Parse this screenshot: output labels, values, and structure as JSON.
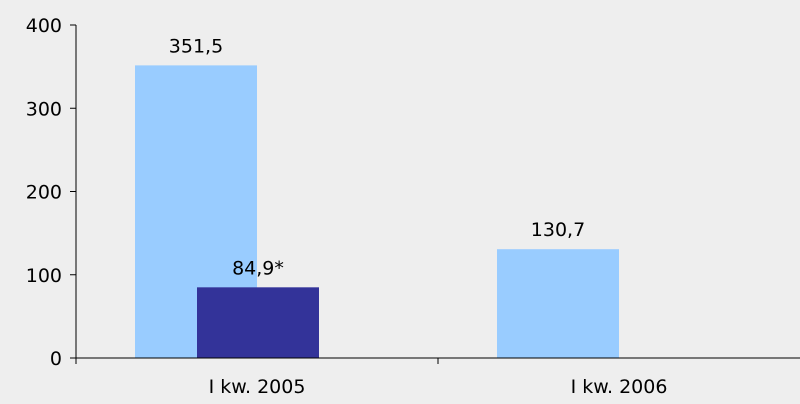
{
  "chart_data": {
    "type": "bar",
    "categories": [
      "I kw. 2005",
      "I kw. 2006"
    ],
    "series": [
      {
        "values": [
          351.5,
          130.7
        ],
        "value_labels": [
          "351,5",
          "130,7"
        ],
        "color": "#99ccff"
      },
      {
        "values": [
          84.9,
          null
        ],
        "value_labels": [
          "84,9*",
          ""
        ],
        "color": "#333399"
      }
    ],
    "ylim": [
      0,
      400
    ],
    "yticks": [
      0,
      100,
      200,
      300,
      400
    ],
    "ytick_labels": [
      "0",
      "100",
      "200",
      "300",
      "400"
    ],
    "grid": false,
    "legend": "none",
    "background": "#eeeeee"
  }
}
